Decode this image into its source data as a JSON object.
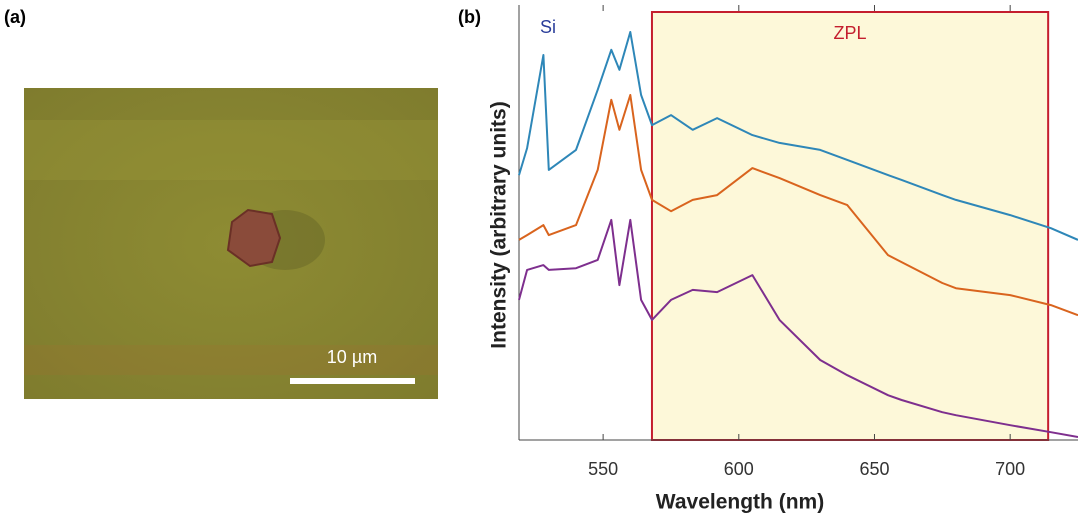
{
  "panel_labels": [
    "(a)",
    "(b)"
  ],
  "image": {
    "scale_bar": "10 µm"
  },
  "chart_data": {
    "type": "line",
    "xlabel": "Wavelength (nm)",
    "ylabel": "Intensity (arbitrary units)",
    "xlim": [
      519,
      725
    ],
    "xticks": [
      550,
      600,
      650,
      700
    ],
    "ylim": [
      0,
      100
    ],
    "annotations": {
      "si": "Si",
      "zpl": "ZPL"
    },
    "zpl_range": [
      568,
      714
    ],
    "x": [
      519,
      522,
      528,
      530,
      540,
      548,
      553,
      556,
      560,
      564,
      568,
      575,
      583,
      592,
      605,
      615,
      630,
      640,
      655,
      660,
      675,
      680,
      700,
      715,
      725
    ],
    "series": [
      {
        "color": "#2e87b8",
        "values": [
          60.9,
          67.1,
          88.5,
          62.1,
          66.7,
          80.5,
          89.7,
          85.1,
          93.8,
          79.3,
          72.4,
          74.7,
          71.3,
          74.0,
          70.1,
          68.3,
          66.7,
          64.4,
          60.9,
          59.8,
          56.3,
          55.2,
          51.7,
          48.7,
          46.0
        ]
      },
      {
        "color": "#d9641e",
        "values": [
          46.0,
          47.1,
          49.4,
          47.1,
          49.4,
          62.1,
          78.2,
          71.3,
          79.3,
          62.1,
          55.2,
          52.6,
          55.2,
          56.3,
          62.5,
          60.2,
          56.3,
          54.0,
          42.5,
          40.9,
          36.1,
          34.9,
          33.3,
          31.0,
          28.7
        ]
      },
      {
        "color": "#7e2f8e",
        "values": [
          32.2,
          39.1,
          40.2,
          39.1,
          39.5,
          41.4,
          50.6,
          35.6,
          50.6,
          32.2,
          27.6,
          32.2,
          34.5,
          34.0,
          37.9,
          27.6,
          18.4,
          14.9,
          10.3,
          9.2,
          6.4,
          5.7,
          3.4,
          1.8,
          0.7
        ]
      }
    ]
  }
}
